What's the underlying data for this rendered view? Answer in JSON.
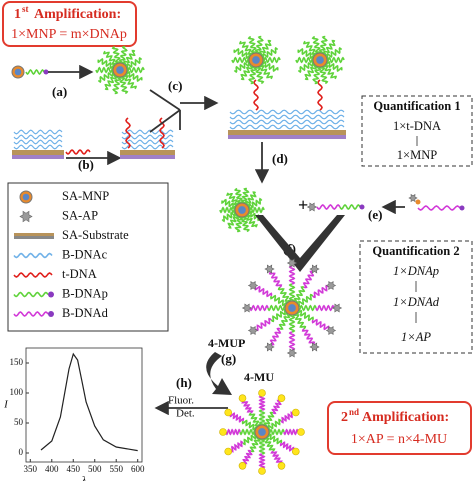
{
  "amplification_1": {
    "number": "1",
    "suffix": "st",
    "title": "Amplification:",
    "equation": "1×MNP = m×DNAp"
  },
  "steps": [
    "(a)",
    "(b)",
    "(c)",
    "(d)",
    "(e)",
    "(f)",
    "(g)",
    "(h)"
  ],
  "quantification_1": {
    "title": "Quantification 1",
    "lines": [
      "1×t-DNA",
      "1×MNP"
    ]
  },
  "quantification_2": {
    "title": "Quantification 2",
    "lines": [
      "1×DNAp",
      "1×DNAd",
      "1×AP"
    ]
  },
  "legend": [
    "SA-MNP",
    "SA-AP",
    "SA-Substrate",
    "B-DNAc",
    "t-DNA",
    "B-DNAp",
    "B-DNAd"
  ],
  "reagents": {
    "substrate": "4-MUP",
    "product": "4-MU"
  },
  "detection": [
    "Fluor.",
    "Det."
  ],
  "amplification_2": {
    "number": "2",
    "suffix": "nd",
    "title": "Amplification:",
    "equation": "1×AP = n×4-MU"
  },
  "chart_data": {
    "type": "line",
    "x": [
      375,
      400,
      420,
      430,
      440,
      450,
      460,
      470,
      480,
      500,
      520,
      550,
      600
    ],
    "values": [
      5,
      20,
      60,
      100,
      140,
      165,
      155,
      120,
      85,
      45,
      22,
      10,
      4
    ],
    "color": "#222222",
    "xlabel": "λ",
    "ylabel": "I",
    "xlim": [
      340,
      610
    ],
    "ylim": [
      -15,
      175
    ],
    "xticks": [
      350,
      400,
      450,
      500,
      550,
      600
    ],
    "yticks": [
      0,
      50,
      100,
      150
    ]
  }
}
